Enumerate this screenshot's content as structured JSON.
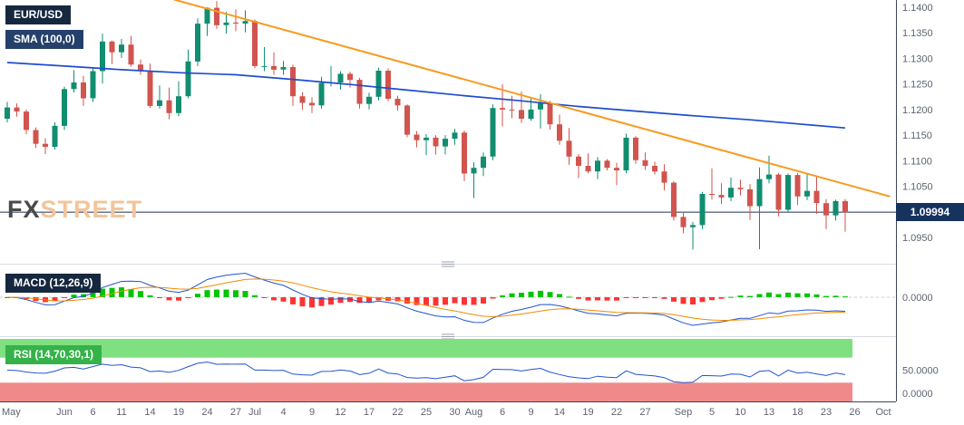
{
  "watermark": {
    "fx": "FX",
    "street": "STREET"
  },
  "colors": {
    "candle_up": "#118d6f",
    "candle_down": "#d1544e",
    "sma": "#1f4ccc",
    "trendline": "#f79a1f",
    "price_line": "#1c2f55",
    "badge_bg": "#16335e",
    "macd_up": "#00c400",
    "macd_down": "#ff3333",
    "macd_line": "#2255cc",
    "macd_signal": "#f08c00",
    "rsi_line": "#2255cc",
    "rsi_upper_band": "#7fe080",
    "rsi_lower_band": "#f08a8a",
    "axis_line": "#3c4758",
    "separator": "#d8dbe0"
  },
  "chart_data": {
    "type": "candlestick",
    "symbol": "EUR/USD",
    "last_price": "1.09994",
    "last_price_value": 1.09994,
    "price_ticks": [
      "1.1400",
      "1.1350",
      "1.1300",
      "1.1250",
      "1.1200",
      "1.1150",
      "1.1100",
      "1.1050",
      "1.0950"
    ],
    "price_axis_range": [
      1.093,
      1.1415
    ],
    "x_labels": [
      {
        "t": "May",
        "i": 0
      },
      {
        "t": "Jun",
        "i": 6
      },
      {
        "t": "6",
        "i": 9
      },
      {
        "t": "11",
        "i": 12
      },
      {
        "t": "14",
        "i": 15
      },
      {
        "t": "19",
        "i": 18
      },
      {
        "t": "24",
        "i": 21
      },
      {
        "t": "27",
        "i": 24
      },
      {
        "t": "Jul",
        "i": 26
      },
      {
        "t": "4",
        "i": 29
      },
      {
        "t": "9",
        "i": 32
      },
      {
        "t": "12",
        "i": 35
      },
      {
        "t": "17",
        "i": 38
      },
      {
        "t": "22",
        "i": 41
      },
      {
        "t": "25",
        "i": 44
      },
      {
        "t": "30",
        "i": 47
      },
      {
        "t": "Aug",
        "i": 49
      },
      {
        "t": "6",
        "i": 52
      },
      {
        "t": "9",
        "i": 55
      },
      {
        "t": "14",
        "i": 58
      },
      {
        "t": "19",
        "i": 61
      },
      {
        "t": "22",
        "i": 64
      },
      {
        "t": "27",
        "i": 67
      },
      {
        "t": "Sep",
        "i": 71
      },
      {
        "t": "5",
        "i": 74
      },
      {
        "t": "10",
        "i": 77
      },
      {
        "t": "13",
        "i": 80
      },
      {
        "t": "18",
        "i": 83
      },
      {
        "t": "23",
        "i": 86
      },
      {
        "t": "26",
        "i": 89
      },
      {
        "t": "Oct",
        "i": 92
      }
    ],
    "ohlc": [
      [
        1.1182,
        1.1215,
        1.1175,
        1.1204
      ],
      [
        1.1204,
        1.1212,
        1.1186,
        1.1196
      ],
      [
        1.1196,
        1.12,
        1.1152,
        1.116
      ],
      [
        1.116,
        1.1165,
        1.1125,
        1.1133
      ],
      [
        1.1133,
        1.1144,
        1.1113,
        1.1127
      ],
      [
        1.1127,
        1.1175,
        1.1122,
        1.1168
      ],
      [
        1.1168,
        1.1245,
        1.116,
        1.124
      ],
      [
        1.124,
        1.1277,
        1.1233,
        1.1253
      ],
      [
        1.1253,
        1.1266,
        1.1207,
        1.1222
      ],
      [
        1.1222,
        1.1282,
        1.1215,
        1.1275
      ],
      [
        1.1275,
        1.1348,
        1.1251,
        1.1333
      ],
      [
        1.1333,
        1.1335,
        1.1289,
        1.1312
      ],
      [
        1.1312,
        1.1338,
        1.1301,
        1.1327
      ],
      [
        1.1327,
        1.1344,
        1.1284,
        1.1288
      ],
      [
        1.1288,
        1.1298,
        1.1268,
        1.1276
      ],
      [
        1.1276,
        1.129,
        1.1203,
        1.1207
      ],
      [
        1.1207,
        1.1247,
        1.1202,
        1.1218
      ],
      [
        1.1218,
        1.1243,
        1.1181,
        1.1193
      ],
      [
        1.1193,
        1.1255,
        1.1187,
        1.1226
      ],
      [
        1.1226,
        1.1317,
        1.1222,
        1.1294
      ],
      [
        1.1294,
        1.1378,
        1.1285,
        1.1368
      ],
      [
        1.1368,
        1.14,
        1.1344,
        1.1399
      ],
      [
        1.1399,
        1.1412,
        1.1358,
        1.1365
      ],
      [
        1.1365,
        1.1391,
        1.1348,
        1.137
      ],
      [
        1.137,
        1.1396,
        1.1353,
        1.1368
      ],
      [
        1.1368,
        1.1394,
        1.1351,
        1.1373
      ],
      [
        1.1373,
        1.1376,
        1.1281,
        1.1285
      ],
      [
        1.1285,
        1.1322,
        1.1275,
        1.1285
      ],
      [
        1.1285,
        1.1312,
        1.1268,
        1.1278
      ],
      [
        1.1278,
        1.1295,
        1.1268,
        1.1283
      ],
      [
        1.1283,
        1.1288,
        1.1207,
        1.1226
      ],
      [
        1.1226,
        1.1234,
        1.1199,
        1.1213
      ],
      [
        1.1213,
        1.1224,
        1.1193,
        1.1208
      ],
      [
        1.1208,
        1.1264,
        1.1202,
        1.1252
      ],
      [
        1.1252,
        1.1285,
        1.1245,
        1.1253
      ],
      [
        1.1253,
        1.1275,
        1.1239,
        1.127
      ],
      [
        1.127,
        1.1274,
        1.1243,
        1.1258
      ],
      [
        1.1258,
        1.1262,
        1.1202,
        1.1211
      ],
      [
        1.1211,
        1.1233,
        1.12,
        1.1225
      ],
      [
        1.1225,
        1.1282,
        1.1218,
        1.1276
      ],
      [
        1.1276,
        1.1281,
        1.1216,
        1.1221
      ],
      [
        1.1221,
        1.1227,
        1.1198,
        1.1208
      ],
      [
        1.1208,
        1.121,
        1.1146,
        1.1151
      ],
      [
        1.1151,
        1.1158,
        1.1126,
        1.114
      ],
      [
        1.114,
        1.1152,
        1.1111,
        1.1145
      ],
      [
        1.1145,
        1.115,
        1.1112,
        1.1128
      ],
      [
        1.1128,
        1.115,
        1.1112,
        1.1143
      ],
      [
        1.1143,
        1.1162,
        1.1131,
        1.1155
      ],
      [
        1.1155,
        1.1159,
        1.106,
        1.1075
      ],
      [
        1.1075,
        1.1097,
        1.1027,
        1.1086
      ],
      [
        1.1086,
        1.1116,
        1.107,
        1.1108
      ],
      [
        1.1108,
        1.121,
        1.1101,
        1.1203
      ],
      [
        1.1203,
        1.125,
        1.1167,
        1.12
      ],
      [
        1.12,
        1.1227,
        1.1183,
        1.1199
      ],
      [
        1.1199,
        1.1235,
        1.1174,
        1.1182
      ],
      [
        1.1182,
        1.1223,
        1.1178,
        1.12
      ],
      [
        1.12,
        1.123,
        1.1163,
        1.1213
      ],
      [
        1.1213,
        1.1217,
        1.1161,
        1.1171
      ],
      [
        1.1171,
        1.119,
        1.1131,
        1.1139
      ],
      [
        1.1139,
        1.1164,
        1.1092,
        1.1108
      ],
      [
        1.1108,
        1.1113,
        1.1066,
        1.109
      ],
      [
        1.109,
        1.1114,
        1.1075,
        1.1079
      ],
      [
        1.1079,
        1.1107,
        1.1064,
        1.11
      ],
      [
        1.11,
        1.1103,
        1.1081,
        1.1086
      ],
      [
        1.1086,
        1.1096,
        1.1052,
        1.1081
      ],
      [
        1.1081,
        1.1153,
        1.1075,
        1.1145
      ],
      [
        1.1145,
        1.1148,
        1.1094,
        1.1101
      ],
      [
        1.1101,
        1.1116,
        1.1082,
        1.109
      ],
      [
        1.109,
        1.1098,
        1.1073,
        1.1079
      ],
      [
        1.1079,
        1.1093,
        1.1042,
        1.1057
      ],
      [
        1.1057,
        1.106,
        1.0983,
        1.099
      ],
      [
        1.099,
        1.0998,
        1.0958,
        1.097
      ],
      [
        1.097,
        1.098,
        1.0926,
        1.0974
      ],
      [
        1.0974,
        1.1039,
        1.0966,
        1.1035
      ],
      [
        1.1035,
        1.1085,
        1.1024,
        1.1033
      ],
      [
        1.1033,
        1.1056,
        1.1015,
        1.1028
      ],
      [
        1.1028,
        1.1067,
        1.1021,
        1.1047
      ],
      [
        1.1047,
        1.1063,
        1.1032,
        1.1044
      ],
      [
        1.1044,
        1.1054,
        1.0984,
        1.1011
      ],
      [
        1.1011,
        1.1087,
        1.0927,
        1.1064
      ],
      [
        1.1064,
        1.111,
        1.1056,
        1.1073
      ],
      [
        1.1073,
        1.1076,
        1.0991,
        1.1004
      ],
      [
        1.1004,
        1.1075,
        1.0998,
        1.1072
      ],
      [
        1.1072,
        1.1076,
        1.1013,
        1.103
      ],
      [
        1.103,
        1.1074,
        1.1023,
        1.1041
      ],
      [
        1.1041,
        1.1068,
        1.0996,
        1.1017
      ],
      [
        1.1017,
        1.1025,
        1.0966,
        1.0993
      ],
      [
        1.0993,
        1.1024,
        1.0983,
        1.1021
      ],
      [
        1.1021,
        1.1025,
        1.0961,
        1.0999
      ]
    ],
    "overlays": {
      "sma": {
        "label": "SMA (100,0)",
        "points": [
          [
            0,
            1.1292
          ],
          [
            6,
            1.1285
          ],
          [
            12,
            1.1278
          ],
          [
            18,
            1.1272
          ],
          [
            24,
            1.1268
          ],
          [
            30,
            1.1259
          ],
          [
            36,
            1.1249
          ],
          [
            42,
            1.1238
          ],
          [
            48,
            1.1227
          ],
          [
            54,
            1.1217
          ],
          [
            60,
            1.1206
          ],
          [
            66,
            1.1197
          ],
          [
            72,
            1.1188
          ],
          [
            78,
            1.118
          ],
          [
            83,
            1.1172
          ],
          [
            88,
            1.1164
          ]
        ]
      },
      "trendline": {
        "points": [
          [
            17.5,
            1.1415
          ],
          [
            92.7,
            1.103
          ]
        ]
      }
    },
    "indicators": {
      "macd": {
        "label": "MACD (12,26,9)",
        "fast": 12,
        "slow": 26,
        "signal": 9,
        "zero_label": "0.0000"
      },
      "rsi": {
        "label": "RSI (14,70,30,1)",
        "period": 14,
        "upper": 70,
        "lower": 30,
        "mid_label": "50.0000",
        "bottom_label": "0.0000"
      }
    }
  }
}
